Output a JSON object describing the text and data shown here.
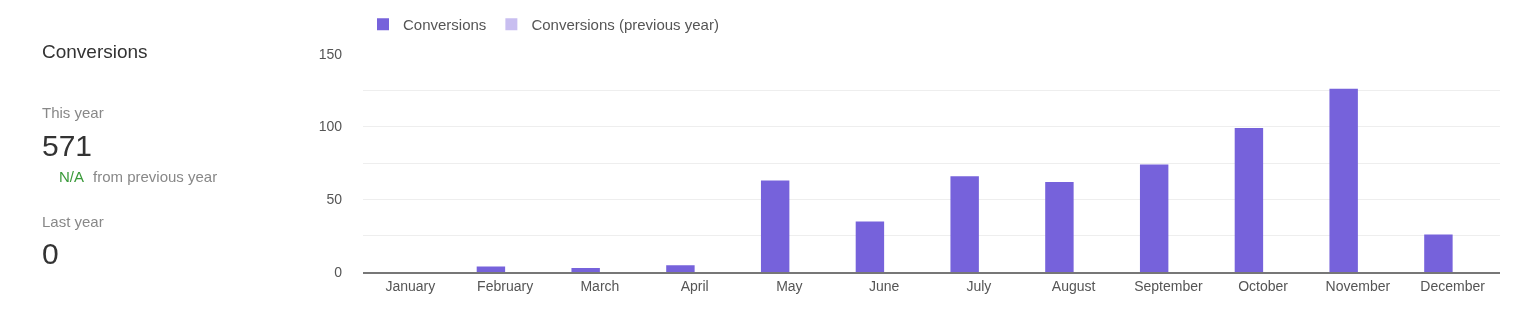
{
  "chart_data": [
    {
      "type": "other",
      "title": "Conversions",
      "annotations": [
        "This year",
        "571",
        "N/A",
        "from previous year",
        "Last year",
        "0"
      ]
    },
    {
      "type": "bar",
      "categories": [
        "January",
        "February",
        "March",
        "April",
        "May",
        "June",
        "July",
        "August",
        "September",
        "October",
        "November",
        "December"
      ],
      "series": [
        {
          "name": "Conversions",
          "color": "#7662db",
          "values": [
            0,
            4,
            3,
            5,
            63,
            35,
            66,
            62,
            74,
            99,
            126,
            26
          ]
        },
        {
          "name": "Conversions (previous year)",
          "color": "#c8bef0",
          "values": [
            0,
            0,
            0,
            0,
            0,
            0,
            0,
            0,
            0,
            0,
            0,
            0
          ]
        }
      ],
      "ylim": [
        0,
        150
      ],
      "yticks": [
        0,
        {
          "value": 25,
          "label": null
        },
        50,
        {
          "value": 75,
          "label": null
        },
        100,
        {
          "value": 125,
          "label": null
        },
        150
      ],
      "grid": "y",
      "legend": "top left"
    }
  ]
}
